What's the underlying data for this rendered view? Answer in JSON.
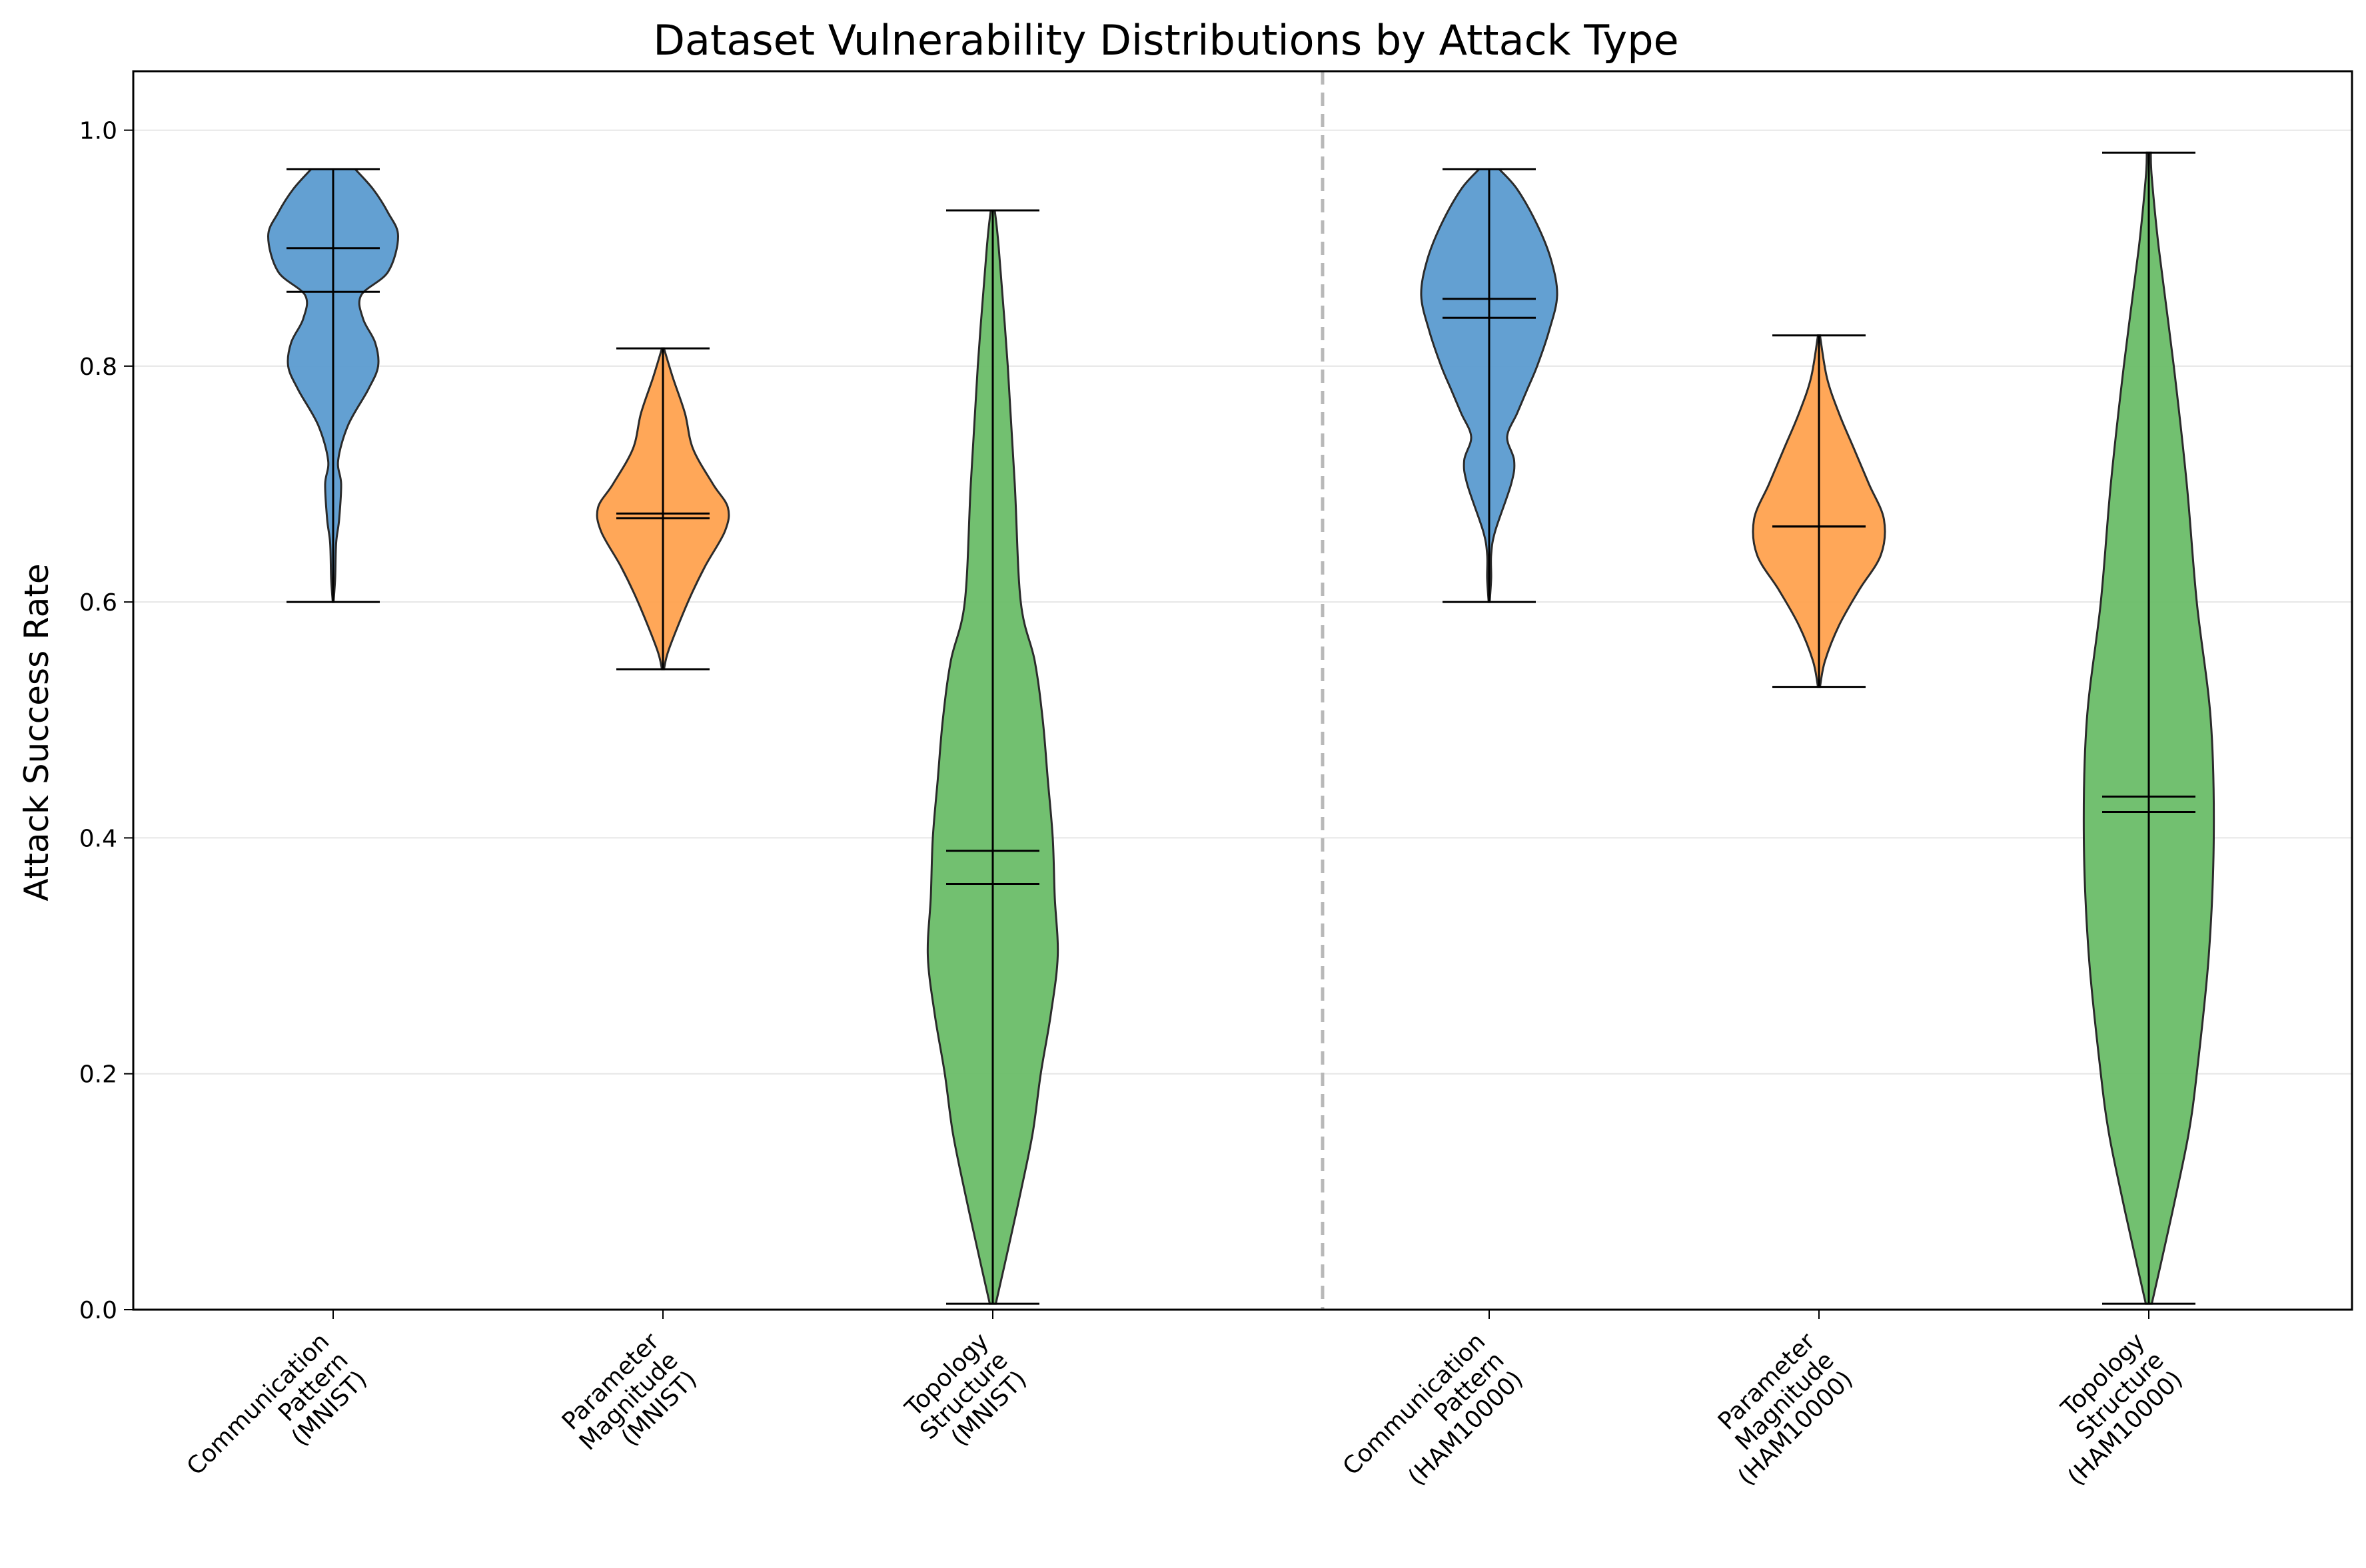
{
  "chart_data": {
    "type": "violin",
    "title": "Dataset Vulnerability Distributions by Attack Type",
    "xlabel": "",
    "ylabel": "Attack Success Rate",
    "ylim": [
      0.0,
      1.05
    ],
    "yticks": [
      0.0,
      0.2,
      0.4,
      0.6,
      0.8,
      1.0
    ],
    "ytick_labels": [
      "0.0",
      "0.2",
      "0.4",
      "0.6",
      "0.8",
      "1.0"
    ],
    "grid": "horizontal",
    "separator_between_groups": true,
    "colors": {
      "communication": "#5b9bd0",
      "parameter": "#ffa24f",
      "topology": "#6abd68",
      "outline": "#2b2b2b",
      "separator": "#b8b8b8",
      "grid": "#e6e6e6"
    },
    "categories": [
      {
        "label_lines": [
          "Communication",
          "Pattern",
          "(MNIST)"
        ],
        "type": "communication",
        "min": 0.6,
        "max": 0.967,
        "mean": 0.863,
        "median": 0.9,
        "profile": [
          [
            0.6,
            0.004
          ],
          [
            0.62,
            0.02
          ],
          [
            0.65,
            0.03
          ],
          [
            0.67,
            0.06
          ],
          [
            0.7,
            0.08
          ],
          [
            0.72,
            0.05
          ],
          [
            0.75,
            0.15
          ],
          [
            0.78,
            0.35
          ],
          [
            0.8,
            0.45
          ],
          [
            0.82,
            0.42
          ],
          [
            0.84,
            0.3
          ],
          [
            0.86,
            0.28
          ],
          [
            0.88,
            0.55
          ],
          [
            0.91,
            0.65
          ],
          [
            0.93,
            0.55
          ],
          [
            0.95,
            0.4
          ],
          [
            0.967,
            0.22
          ]
        ]
      },
      {
        "label_lines": [
          "Parameter",
          "Magnitude",
          "(MNIST)"
        ],
        "type": "parameter",
        "min": 0.543,
        "max": 0.815,
        "mean": 0.675,
        "median": 0.671,
        "profile": [
          [
            0.543,
            0.01
          ],
          [
            0.56,
            0.06
          ],
          [
            0.6,
            0.25
          ],
          [
            0.63,
            0.42
          ],
          [
            0.66,
            0.62
          ],
          [
            0.68,
            0.65
          ],
          [
            0.7,
            0.5
          ],
          [
            0.73,
            0.3
          ],
          [
            0.76,
            0.22
          ],
          [
            0.79,
            0.1
          ],
          [
            0.815,
            0.01
          ]
        ]
      },
      {
        "label_lines": [
          "Topology",
          "Structure",
          "(MNIST)"
        ],
        "type": "topology",
        "min": 0.005,
        "max": 0.932,
        "mean": 0.389,
        "median": 0.361,
        "profile": [
          [
            0.005,
            0.03
          ],
          [
            0.05,
            0.15
          ],
          [
            0.1,
            0.28
          ],
          [
            0.15,
            0.4
          ],
          [
            0.2,
            0.48
          ],
          [
            0.25,
            0.58
          ],
          [
            0.3,
            0.65
          ],
          [
            0.35,
            0.62
          ],
          [
            0.4,
            0.6
          ],
          [
            0.45,
            0.55
          ],
          [
            0.5,
            0.5
          ],
          [
            0.55,
            0.42
          ],
          [
            0.6,
            0.28
          ],
          [
            0.7,
            0.22
          ],
          [
            0.8,
            0.15
          ],
          [
            0.9,
            0.06
          ],
          [
            0.932,
            0.02
          ]
        ]
      },
      {
        "label_lines": [
          "Communication",
          "Pattern",
          "(HAM10000)"
        ],
        "type": "communication",
        "min": 0.6,
        "max": 0.967,
        "mean": 0.857,
        "median": 0.841,
        "profile": [
          [
            0.6,
            0.005
          ],
          [
            0.62,
            0.02
          ],
          [
            0.64,
            0.02
          ],
          [
            0.66,
            0.06
          ],
          [
            0.7,
            0.22
          ],
          [
            0.72,
            0.25
          ],
          [
            0.74,
            0.18
          ],
          [
            0.76,
            0.28
          ],
          [
            0.78,
            0.38
          ],
          [
            0.8,
            0.48
          ],
          [
            0.83,
            0.6
          ],
          [
            0.86,
            0.68
          ],
          [
            0.89,
            0.62
          ],
          [
            0.92,
            0.48
          ],
          [
            0.95,
            0.28
          ],
          [
            0.967,
            0.1
          ]
        ]
      },
      {
        "label_lines": [
          "Parameter",
          "Magnitude",
          "(HAM10000)"
        ],
        "type": "parameter",
        "min": 0.528,
        "max": 0.826,
        "mean": 0.664,
        "median": 0.664,
        "profile": [
          [
            0.528,
            0.01
          ],
          [
            0.55,
            0.06
          ],
          [
            0.58,
            0.2
          ],
          [
            0.61,
            0.4
          ],
          [
            0.64,
            0.62
          ],
          [
            0.67,
            0.65
          ],
          [
            0.7,
            0.5
          ],
          [
            0.73,
            0.35
          ],
          [
            0.76,
            0.2
          ],
          [
            0.79,
            0.08
          ],
          [
            0.826,
            0.01
          ]
        ]
      },
      {
        "label_lines": [
          "Topology",
          "Structure",
          "(HAM10000)"
        ],
        "type": "topology",
        "min": 0.005,
        "max": 0.981,
        "mean": 0.435,
        "median": 0.422,
        "profile": [
          [
            0.005,
            0.03
          ],
          [
            0.05,
            0.15
          ],
          [
            0.1,
            0.28
          ],
          [
            0.15,
            0.4
          ],
          [
            0.2,
            0.48
          ],
          [
            0.3,
            0.6
          ],
          [
            0.4,
            0.65
          ],
          [
            0.5,
            0.62
          ],
          [
            0.6,
            0.48
          ],
          [
            0.7,
            0.38
          ],
          [
            0.8,
            0.25
          ],
          [
            0.9,
            0.1
          ],
          [
            0.96,
            0.03
          ],
          [
            0.981,
            0.02
          ]
        ]
      }
    ]
  }
}
